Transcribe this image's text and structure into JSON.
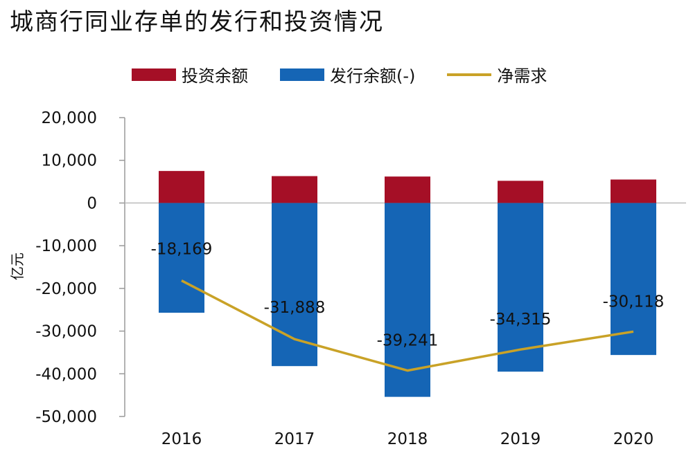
{
  "title": "城商行同业存单的发行和投资情况",
  "legend": {
    "items": [
      {
        "label": "投资余额",
        "color": "#A50F26",
        "kind": "bar"
      },
      {
        "label": "发行余额(-)",
        "color": "#1565B5",
        "kind": "bar"
      },
      {
        "label": "净需求",
        "color": "#C9A227",
        "kind": "line"
      }
    ]
  },
  "chart_data": {
    "type": "bar",
    "categories": [
      "2016",
      "2017",
      "2018",
      "2019",
      "2020"
    ],
    "series": [
      {
        "name": "投资余额",
        "type": "bar",
        "color": "#A50F26",
        "values": [
          7500,
          6300,
          6200,
          5200,
          5500
        ]
      },
      {
        "name": "发行余额(-)",
        "type": "bar",
        "color": "#1565B5",
        "values": [
          -25700,
          -38200,
          -45400,
          -39500,
          -35600
        ]
      },
      {
        "name": "净需求",
        "type": "line",
        "color": "#C9A227",
        "values": [
          -18169,
          -31888,
          -39241,
          -34315,
          -30118
        ]
      }
    ],
    "data_labels": [
      "-18,169",
      "-31,888",
      "-39,241",
      "-34,315",
      "-30,118"
    ],
    "ylabel": "亿元",
    "ylim": [
      -50000,
      20000
    ],
    "yticks": [
      20000,
      10000,
      0,
      -10000,
      -20000,
      -30000,
      -40000,
      -50000
    ],
    "ytick_labels": [
      "20,000",
      "10,000",
      "0",
      "-10,000",
      "-20,000",
      "-30,000",
      "-40,000",
      "-50,000"
    ],
    "grid": false,
    "legend_position": "top"
  }
}
